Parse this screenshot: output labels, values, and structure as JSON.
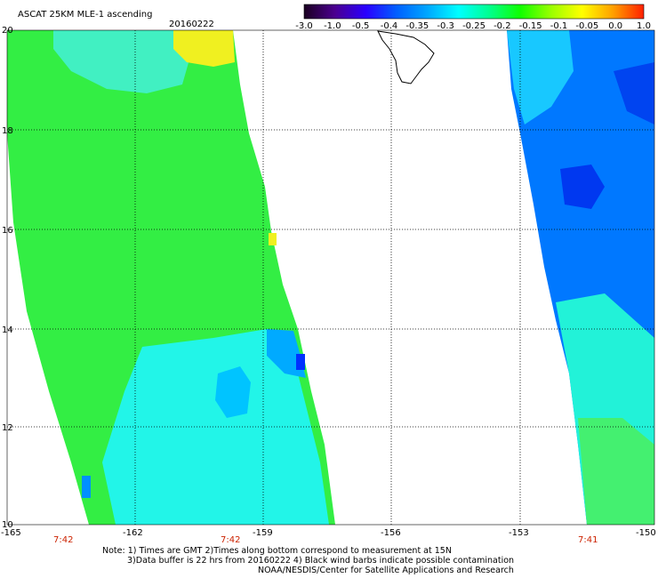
{
  "title": "ASCAT 25KM MLE-1 ascending",
  "date": "20160222",
  "colorbar": {
    "labels": [
      "-3.0",
      "-1.0",
      "-0.5",
      "-0.4",
      "-0.35",
      "-0.3",
      "-0.25",
      "-0.2",
      "-0.15",
      "-0.1",
      "-0.05",
      "0.0",
      "1.0"
    ],
    "colors": [
      "#1a0020",
      "#4b0090",
      "#2a00ff",
      "#0060ff",
      "#00a8ff",
      "#00ffff",
      "#00ff90",
      "#10ff00",
      "#9aff00",
      "#ffff00",
      "#ffa000",
      "#ff2000"
    ]
  },
  "axes": {
    "lat_labels": [
      "20",
      "18",
      "16",
      "14",
      "12",
      "10"
    ],
    "lon_labels": [
      "-165",
      "-162",
      "-159",
      "-156",
      "-153",
      "-150"
    ]
  },
  "pass_times": [
    "7:42",
    "7:42",
    "7:41"
  ],
  "notes": [
    "Note: 1) Times are GMT 2)Times along bottom correspond to measurement at 15N",
    "3)Data buffer is 22 hrs from 20160222 4) Black wind barbs indicate possible contamination",
    "NOAA/NESDIS/Center for Satellite Applications and Research"
  ]
}
